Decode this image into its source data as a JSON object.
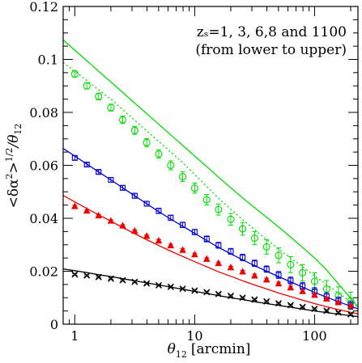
{
  "chart_data": {
    "type": "scatter",
    "xscale": "log",
    "xlim": [
      0.8,
      230
    ],
    "ylim": [
      0,
      0.12
    ],
    "grid": false,
    "annotation_lines": [
      "zₛ=1, 3, 6,8 and 1100",
      "(from lower to upper)"
    ],
    "ylabel": "<δα²>^{1/2}/θ₁₂",
    "ylabel_text": "<δα",
    "ylabel_sup1": "2",
    "ylabel_mid": ">",
    "ylabel_sup2": "1/2",
    "ylabel_end": "/θ",
    "ylabel_sub": "12",
    "xlabel_theta": "θ",
    "xlabel_sub": "12",
    "xlabel_unit": "[arcmin]",
    "xticks": [
      {
        "value": 1,
        "label": "1"
      },
      {
        "value": 10,
        "label": "10"
      },
      {
        "value": 100,
        "label": "100"
      }
    ],
    "yticks": [
      {
        "value": 0,
        "label": "0"
      },
      {
        "value": 0.02,
        "label": "0.02"
      },
      {
        "value": 0.04,
        "label": "0.04"
      },
      {
        "value": 0.06,
        "label": "0.06"
      },
      {
        "value": 0.08,
        "label": "0.08"
      },
      {
        "value": 0.1,
        "label": "0.1"
      },
      {
        "value": 0.12,
        "label": "0.12"
      }
    ],
    "x": [
      1.0,
      1.26,
      1.58,
      2.0,
      2.51,
      3.16,
      3.98,
      5.01,
      6.31,
      7.94,
      10.0,
      12.6,
      15.8,
      20.0,
      25.1,
      31.6,
      39.8,
      50.1,
      63.1,
      79.4,
      100,
      126,
      158,
      200
    ],
    "series": [
      {
        "color": "#00dd00",
        "marker": "circle",
        "values": [
          0.0945,
          0.09,
          0.086,
          0.0818,
          0.0772,
          0.0732,
          0.0686,
          0.0643,
          0.06,
          0.0557,
          0.0514,
          0.047,
          0.0433,
          0.0396,
          0.036,
          0.0325,
          0.0292,
          0.026,
          0.0225,
          0.0194,
          0.0162,
          0.0133,
          0.0108,
          0.0088
        ],
        "errors": [
          0.0012,
          0.0012,
          0.0013,
          0.0013,
          0.0014,
          0.0015,
          0.0015,
          0.0016,
          0.0017,
          0.0018,
          0.0019,
          0.002,
          0.0021,
          0.0022,
          0.0024,
          0.0025,
          0.0027,
          0.0028,
          0.003,
          0.0031,
          0.0032,
          0.0032,
          0.0033,
          0.0033
        ],
        "theory_solid": [
          0.1035,
          0.0995,
          0.0955,
          0.0915,
          0.0875,
          0.0835,
          0.0795,
          0.0755,
          0.0715,
          0.0675,
          0.0635,
          0.0595,
          0.0555,
          0.0515,
          0.0477,
          0.044,
          0.0404,
          0.0367,
          0.0329,
          0.029,
          0.025,
          0.0205,
          0.0152,
          0.0098
        ],
        "theory_dotted": [
          0.0955,
          0.092,
          0.0885,
          0.085,
          0.081,
          0.077,
          0.073,
          0.069,
          0.065,
          0.061,
          0.0566,
          0.052,
          0.0476,
          0.0434,
          0.0395,
          0.0357,
          0.032,
          0.0284,
          0.025,
          0.0217,
          0.0183,
          0.015,
          0.0117,
          0.0085
        ]
      },
      {
        "color": "#0000dd",
        "marker": "square",
        "values": [
          0.0628,
          0.0603,
          0.0575,
          0.0545,
          0.0515,
          0.0485,
          0.0455,
          0.0428,
          0.0402,
          0.0375,
          0.0348,
          0.0322,
          0.0298,
          0.0275,
          0.0252,
          0.023,
          0.0208,
          0.0186,
          0.0165,
          0.0144,
          0.0124,
          0.0105,
          0.0088,
          0.0072
        ],
        "errors": [
          0.0008,
          0.0008,
          0.0008,
          0.0009,
          0.0009,
          0.0009,
          0.0009,
          0.001,
          0.001,
          0.001,
          0.001,
          0.0011,
          0.0011,
          0.0011,
          0.0012,
          0.0012,
          0.0012,
          0.0013,
          0.0013,
          0.0013,
          0.0014,
          0.0014,
          0.0014,
          0.0014
        ],
        "theory_solid": [
          0.0635,
          0.0605,
          0.0575,
          0.0545,
          0.0515,
          0.0485,
          0.0455,
          0.0425,
          0.0397,
          0.037,
          0.0343,
          0.0316,
          0.029,
          0.0266,
          0.0243,
          0.0221,
          0.02,
          0.018,
          0.016,
          0.014,
          0.012,
          0.0102,
          0.0085,
          0.0068
        ]
      },
      {
        "color": "#ee0000",
        "marker": "triangle",
        "values": [
          0.0445,
          0.0428,
          0.041,
          0.039,
          0.0372,
          0.0352,
          0.0333,
          0.0315,
          0.0297,
          0.028,
          0.0263,
          0.0246,
          0.023,
          0.0214,
          0.0198,
          0.0183,
          0.0168,
          0.0153,
          0.0138,
          0.0124,
          0.011,
          0.0096,
          0.0082,
          0.0069
        ],
        "errors": [
          0.0004,
          0.0004,
          0.0004,
          0.0004,
          0.0004,
          0.0004,
          0.0004,
          0.0005,
          0.0005,
          0.0005,
          0.0005,
          0.0005,
          0.0005,
          0.0005,
          0.0005,
          0.0006,
          0.0006,
          0.0006,
          0.0006,
          0.0006,
          0.0006,
          0.0006,
          0.0006,
          0.0006
        ],
        "theory_solid": [
          0.0462,
          0.0437,
          0.0413,
          0.0389,
          0.0365,
          0.0342,
          0.0319,
          0.0297,
          0.0276,
          0.0256,
          0.0236,
          0.0217,
          0.0198,
          0.0181,
          0.0164,
          0.0148,
          0.0133,
          0.0118,
          0.0104,
          0.0091,
          0.0078,
          0.0066,
          0.0055,
          0.0045
        ]
      },
      {
        "color": "#000000",
        "marker": "cross",
        "values": [
          0.0188,
          0.0184,
          0.0178,
          0.0172,
          0.0166,
          0.016,
          0.0154,
          0.0147,
          0.0141,
          0.0134,
          0.0127,
          0.0121,
          0.0114,
          0.0107,
          0.01,
          0.0093,
          0.0086,
          0.0079,
          0.0072,
          0.0065,
          0.0058,
          0.0051,
          0.0044,
          0.0037
        ],
        "errors": [
          0.0003,
          0.0003,
          0.0003,
          0.0003,
          0.0003,
          0.0003,
          0.0003,
          0.0003,
          0.0003,
          0.0003,
          0.0003,
          0.0003,
          0.0003,
          0.0003,
          0.0003,
          0.0003,
          0.0003,
          0.0003,
          0.0003,
          0.0003,
          0.0003,
          0.0003,
          0.0003,
          0.0003
        ],
        "theory_solid": [
          0.0202,
          0.0195,
          0.0187,
          0.018,
          0.0172,
          0.0164,
          0.0156,
          0.0148,
          0.014,
          0.0132,
          0.0124,
          0.0116,
          0.0108,
          0.01,
          0.0093,
          0.0085,
          0.0078,
          0.0071,
          0.0064,
          0.0057,
          0.005,
          0.0044,
          0.0038,
          0.0032
        ]
      }
    ]
  }
}
